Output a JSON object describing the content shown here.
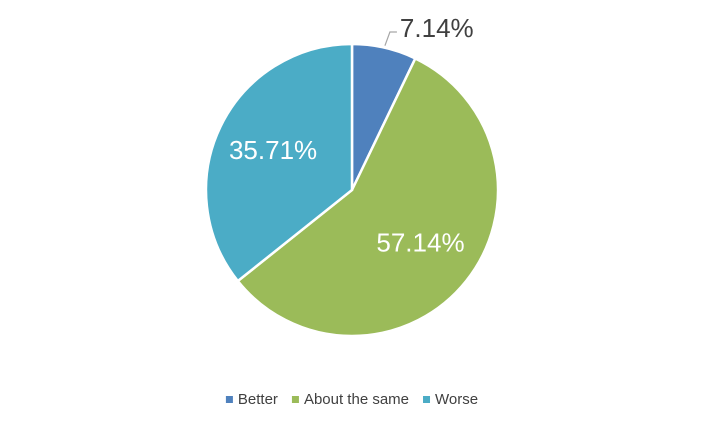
{
  "chart_data": {
    "type": "pie",
    "categories": [
      "Better",
      "About the same",
      "Worse"
    ],
    "values": [
      7.14,
      57.14,
      35.71
    ],
    "value_labels": [
      "7.14%",
      "57.14%",
      "35.71%"
    ],
    "colors": [
      "#4f81bd",
      "#9bbb59",
      "#4bacc6"
    ],
    "legend": "bottom"
  }
}
